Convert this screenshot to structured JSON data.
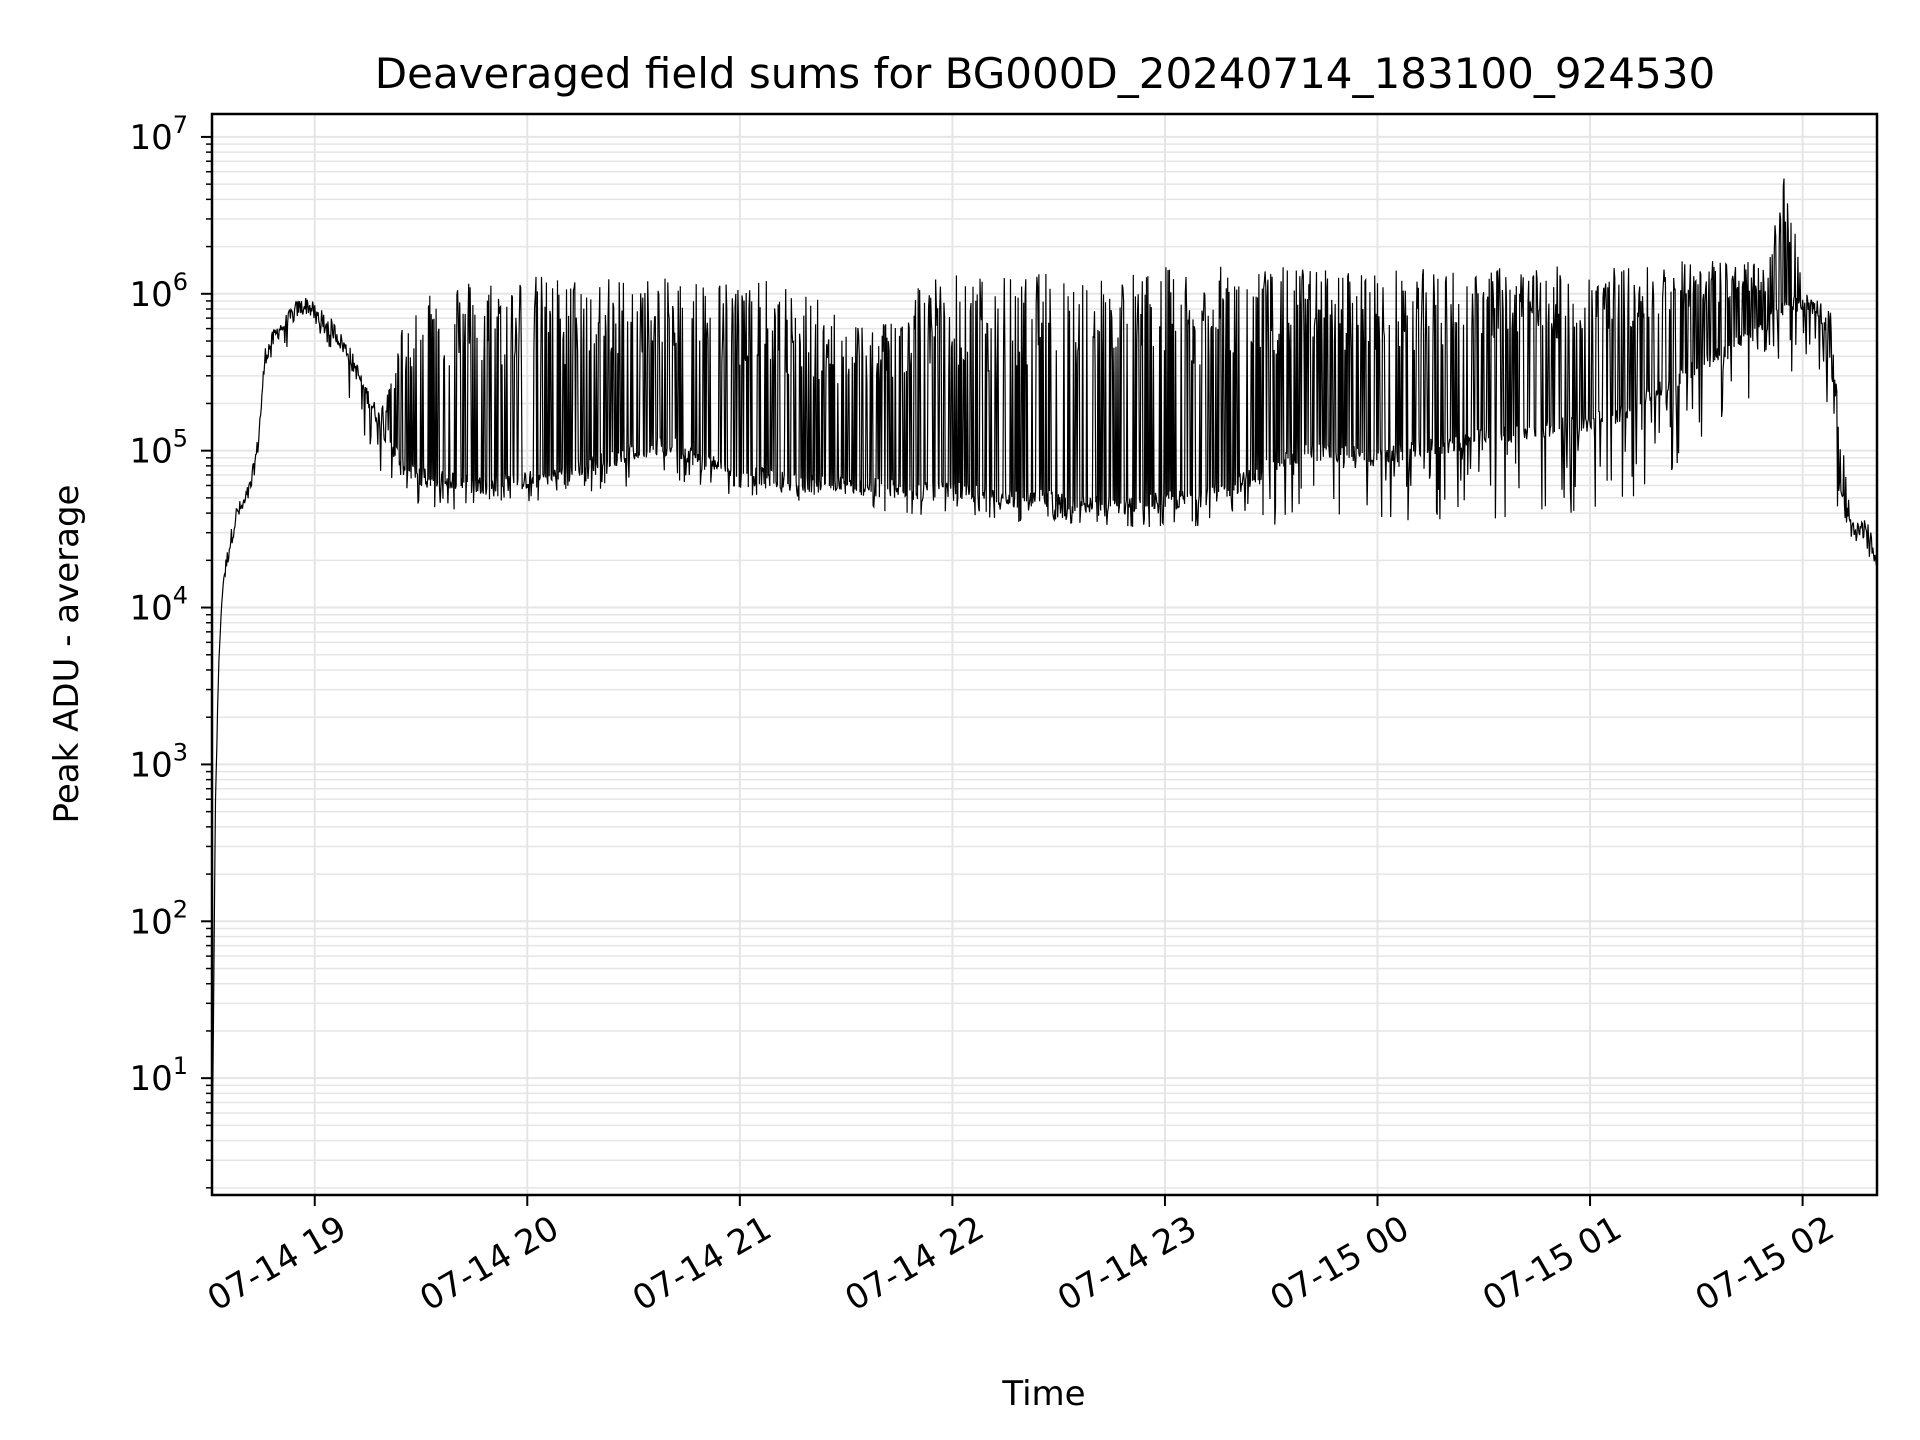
{
  "chart_data": {
    "type": "line",
    "title": "Deaveraged field sums for BG000D_20240714_183100_924530",
    "xlabel": "Time",
    "ylabel": "Peak ADU - average",
    "y_scale": "log",
    "ylim": [
      1.8,
      14000000
    ],
    "xlim": [
      "2024-07-14 18:31",
      "2024-07-15 02:21"
    ],
    "grid": true,
    "line_color": "#000000",
    "grid_color": "#e5e5e5",
    "x_ticks": [
      {
        "value": "2024-07-14 19:00",
        "label": "07-14 19"
      },
      {
        "value": "2024-07-14 20:00",
        "label": "07-14 20"
      },
      {
        "value": "2024-07-14 21:00",
        "label": "07-14 21"
      },
      {
        "value": "2024-07-14 22:00",
        "label": "07-14 22"
      },
      {
        "value": "2024-07-14 23:00",
        "label": "07-14 23"
      },
      {
        "value": "2024-07-15 00:00",
        "label": "07-15 00"
      },
      {
        "value": "2024-07-15 01:00",
        "label": "07-15 01"
      },
      {
        "value": "2024-07-15 02:00",
        "label": "07-15 02"
      }
    ],
    "y_ticks": [
      {
        "value": 10,
        "base": "10",
        "exp": "1"
      },
      {
        "value": 100,
        "base": "10",
        "exp": "2"
      },
      {
        "value": 1000,
        "base": "10",
        "exp": "3"
      },
      {
        "value": 10000,
        "base": "10",
        "exp": "4"
      },
      {
        "value": 100000,
        "base": "10",
        "exp": "5"
      },
      {
        "value": 1000000,
        "base": "10",
        "exp": "6"
      },
      {
        "value": 10000000,
        "base": "10",
        "exp": "7"
      }
    ],
    "series": [
      {
        "x": [
          "2024-07-14 18:31",
          "2024-07-14 18:32",
          "2024-07-14 18:33",
          "2024-07-14 18:34",
          "2024-07-14 18:36",
          "2024-07-14 18:38",
          "2024-07-14 18:40",
          "2024-07-14 18:42",
          "2024-07-14 18:44",
          "2024-07-14 18:46",
          "2024-07-14 18:48",
          "2024-07-14 18:50",
          "2024-07-14 18:52",
          "2024-07-14 18:55",
          "2024-07-14 18:58",
          "2024-07-14 19:00",
          "2024-07-14 19:05",
          "2024-07-14 19:10",
          "2024-07-14 19:15",
          "2024-07-14 19:20",
          "2024-07-14 19:25",
          "2024-07-14 19:30",
          "2024-07-14 19:35",
          "2024-07-14 19:40",
          "2024-07-14 19:45",
          "2024-07-14 19:50",
          "2024-07-14 20:00",
          "2024-07-14 20:10",
          "2024-07-14 20:20",
          "2024-07-14 20:30",
          "2024-07-14 20:40",
          "2024-07-14 20:50",
          "2024-07-14 21:00",
          "2024-07-14 21:10",
          "2024-07-14 21:20",
          "2024-07-14 21:30",
          "2024-07-14 21:40",
          "2024-07-14 21:50",
          "2024-07-14 22:00",
          "2024-07-14 22:10",
          "2024-07-14 22:20",
          "2024-07-14 22:30",
          "2024-07-14 22:40",
          "2024-07-14 22:50",
          "2024-07-14 23:00",
          "2024-07-14 23:10",
          "2024-07-14 23:20",
          "2024-07-14 23:30",
          "2024-07-14 23:40",
          "2024-07-14 23:50",
          "2024-07-15 00:00",
          "2024-07-15 00:10",
          "2024-07-15 00:20",
          "2024-07-15 00:30",
          "2024-07-15 00:40",
          "2024-07-15 00:50",
          "2024-07-15 01:00",
          "2024-07-15 01:10",
          "2024-07-15 01:20",
          "2024-07-15 01:30",
          "2024-07-15 01:40",
          "2024-07-15 01:45",
          "2024-07-15 01:50",
          "2024-07-15 01:55",
          "2024-07-15 02:00",
          "2024-07-15 02:05",
          "2024-07-15 02:08",
          "2024-07-15 02:10",
          "2024-07-15 02:14",
          "2024-07-15 02:18",
          "2024-07-15 02:21"
        ],
        "baseline": [
          2,
          700,
          5000,
          14000,
          25000,
          40000,
          45000,
          60000,
          110000,
          400000,
          500000,
          600000,
          650000,
          800000,
          850000,
          750000,
          600000,
          400000,
          220000,
          130000,
          80000,
          70000,
          65000,
          65000,
          60000,
          62000,
          65000,
          72000,
          85000,
          100000,
          110000,
          85000,
          75000,
          65000,
          62000,
          60000,
          58000,
          55000,
          55000,
          52000,
          50000,
          48000,
          45000,
          46000,
          48000,
          50000,
          60000,
          80000,
          100000,
          95000,
          90000,
          100000,
          110000,
          120000,
          130000,
          140000,
          150000,
          180000,
          250000,
          350000,
          450000,
          550000,
          650000,
          800000,
          900000,
          800000,
          400000,
          60000,
          30000,
          32000,
          20000
        ],
        "peak": [
          2,
          700,
          5000,
          14000,
          25000,
          40000,
          45000,
          60000,
          110000,
          400000,
          600000,
          700000,
          800000,
          900000,
          950000,
          850000,
          750000,
          600000,
          300000,
          200000,
          700000,
          1300000,
          1300000,
          1300000,
          1300000,
          1300000,
          1350000,
          1300000,
          1300000,
          1300000,
          1250000,
          1300000,
          1250000,
          1200000,
          1000000,
          700000,
          700000,
          1300000,
          1400000,
          1300000,
          1300000,
          1450000,
          1400000,
          1400000,
          1500000,
          1500000,
          1500000,
          1500000,
          1500000,
          1450000,
          1450000,
          1450000,
          1450000,
          1500000,
          1500000,
          1500000,
          1500000,
          1500000,
          1550000,
          1700000,
          1650000,
          1600000,
          1500000,
          6700000,
          1200000,
          900000,
          800000,
          200000,
          35000,
          35000,
          20000
        ],
        "low": [
          2,
          700,
          5000,
          14000,
          25000,
          40000,
          45000,
          60000,
          110000,
          400000,
          350000,
          400000,
          450000,
          500000,
          550000,
          500000,
          350000,
          200000,
          100000,
          55000,
          50000,
          45000,
          42000,
          42000,
          45000,
          45000,
          45000,
          50000,
          55000,
          60000,
          60000,
          55000,
          52000,
          50000,
          45000,
          42000,
          40000,
          38000,
          38000,
          36000,
          35000,
          33000,
          32000,
          32000,
          33000,
          33000,
          33000,
          32000,
          32000,
          32000,
          33000,
          34000,
          34000,
          35000,
          36000,
          38000,
          40000,
          45000,
          60000,
          100000,
          150000,
          200000,
          250000,
          300000,
          350000,
          300000,
          150000,
          30000,
          20000,
          22000,
          15000
        ]
      }
    ]
  }
}
